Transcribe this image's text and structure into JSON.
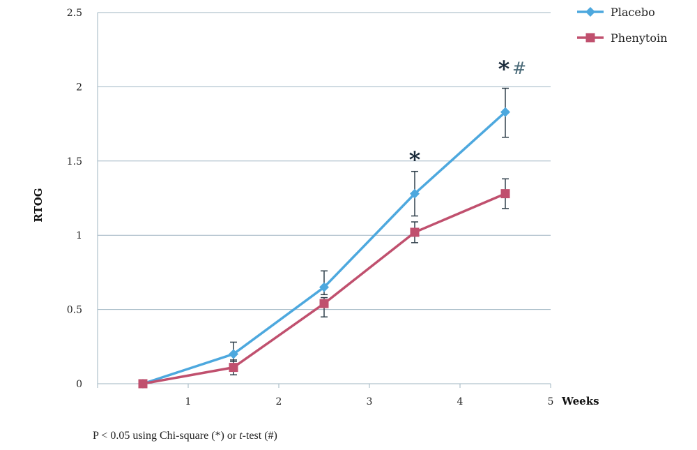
{
  "chart_data": {
    "type": "line",
    "title": "",
    "xlabel": "Weeks",
    "ylabel": "RTOG",
    "xlim": [
      0,
      5
    ],
    "ylim": [
      0,
      2.5
    ],
    "xticks": [
      1,
      2,
      3,
      4,
      5
    ],
    "yticks": [
      0,
      0.5,
      1,
      1.5,
      2,
      2.5
    ],
    "ytick_labels": [
      "0",
      "0.5",
      "1",
      "1.5",
      "2",
      "2.5"
    ],
    "grid": "horizontal",
    "legend_position": "top-right",
    "series": [
      {
        "name": "Placebo",
        "color": "#4da8de",
        "marker": "diamond",
        "x": [
          0.5,
          1.5,
          2.5,
          3.5,
          4.5
        ],
        "y": [
          0,
          0.2,
          0.65,
          1.28,
          1.83
        ],
        "err_upper": [
          0,
          0.28,
          0.76,
          1.43,
          1.99
        ],
        "err_lower": [
          0,
          0.15,
          0.6,
          1.13,
          1.66
        ]
      },
      {
        "name": "Phenytoin",
        "color": "#c0506e",
        "marker": "square",
        "x": [
          0.5,
          1.5,
          2.5,
          3.5,
          4.5
        ],
        "y": [
          0,
          0.11,
          0.54,
          1.02,
          1.28
        ],
        "err_upper": [
          0,
          0.16,
          0.58,
          1.09,
          1.38
        ],
        "err_lower": [
          0,
          0.06,
          0.45,
          0.95,
          1.18
        ]
      }
    ],
    "annotations": [
      {
        "x": 3.5,
        "text": "*",
        "kind": "star"
      },
      {
        "x": 4.5,
        "text": "*",
        "kind": "star"
      },
      {
        "x": 4.5,
        "text": "#",
        "kind": "hash"
      }
    ]
  },
  "footnote": {
    "prefix": "P < 0.05 using Chi-square (*) or ",
    "italic": "t",
    "suffix": "-test (#)"
  }
}
